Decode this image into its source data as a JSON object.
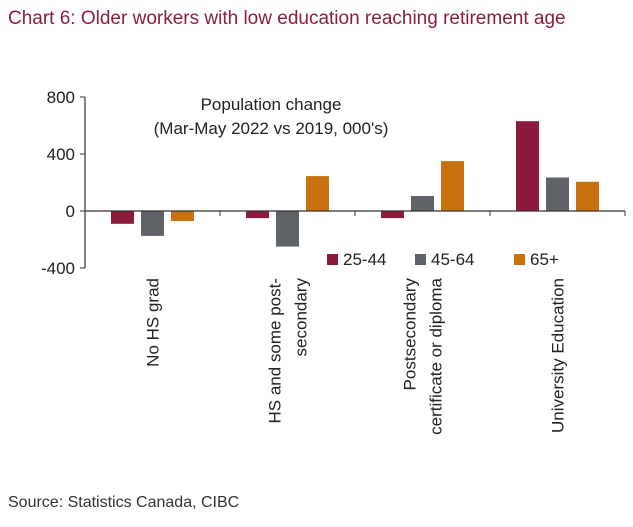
{
  "header": {
    "title": "Chart 6: Older workers with low education reaching retirement age"
  },
  "footer": {
    "source": "Source: Statistics Canada, CIBC"
  },
  "chart_data": {
    "type": "bar",
    "annotation": [
      "Population change",
      "(Mar-May 2022 vs 2019, 000's)"
    ],
    "categories": [
      [
        "No HS grad"
      ],
      [
        "HS and some post-",
        "secondary"
      ],
      [
        "Postsecondary",
        "certificate or diploma"
      ],
      [
        "University Education"
      ]
    ],
    "series": [
      {
        "name": "25-44",
        "color": "#8c1a3b",
        "values": [
          -90,
          -50,
          -50,
          630
        ]
      },
      {
        "name": "45-64",
        "color": "#5f6368",
        "values": [
          -175,
          -250,
          105,
          235
        ]
      },
      {
        "name": "65+",
        "color": "#c9720d",
        "values": [
          -70,
          245,
          350,
          205
        ]
      }
    ],
    "yticks": [
      "800",
      "400",
      "0",
      "-400"
    ],
    "ytick_values": [
      800,
      400,
      0,
      -400
    ],
    "ylim": [
      -400,
      800
    ],
    "legend_position": "right, below zero line",
    "xlabel": "",
    "ylabel": ""
  }
}
